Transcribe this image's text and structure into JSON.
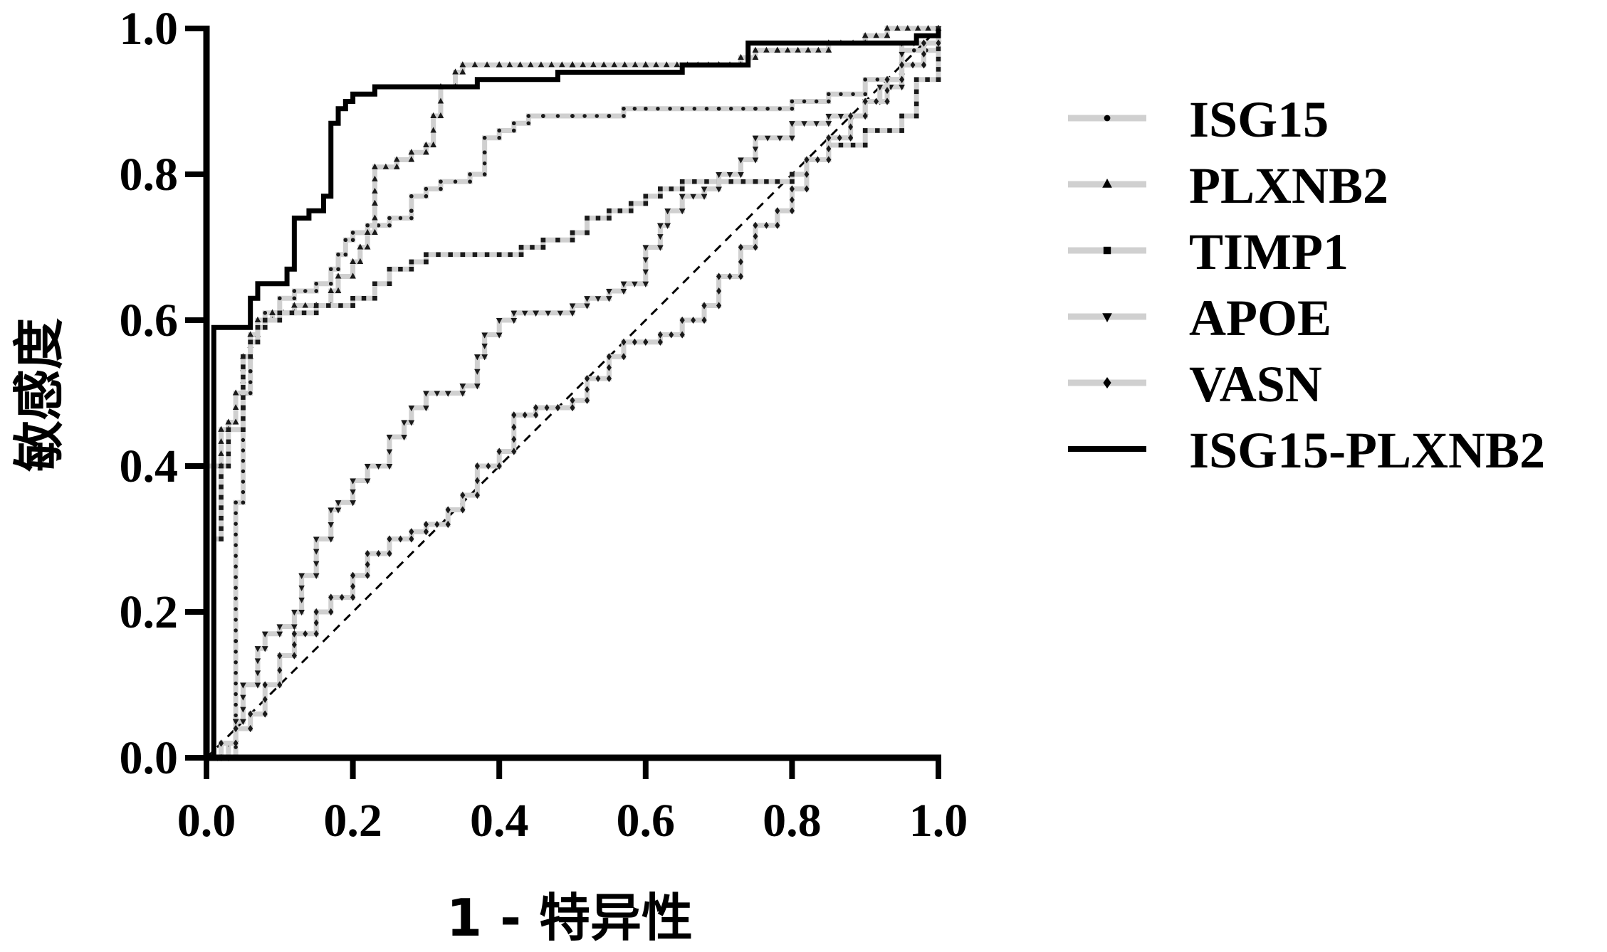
{
  "chart_data": {
    "type": "line",
    "title": "",
    "xlabel": "1 - 特异性",
    "ylabel": "敏感度",
    "xlim": [
      0,
      1
    ],
    "ylim": [
      0,
      1
    ],
    "x_ticks": [
      "0.0",
      "0.2",
      "0.4",
      "0.6",
      "0.8",
      "1.0"
    ],
    "y_ticks": [
      "0.0",
      "0.2",
      "0.4",
      "0.6",
      "0.8",
      "1.0"
    ],
    "grid": false,
    "legend_position": "right",
    "reference_line": {
      "x": [
        0,
        1
      ],
      "y": [
        0,
        1
      ],
      "style": "dashed"
    },
    "series": [
      {
        "name": "ISG15",
        "marker": "circle",
        "x": [
          0,
          0.04,
          0.04,
          0.05,
          0.05,
          0.06,
          0.06,
          0.07,
          0.08,
          0.1,
          0.12,
          0.15,
          0.17,
          0.18,
          0.19,
          0.2,
          0.22,
          0.25,
          0.28,
          0.28,
          0.3,
          0.32,
          0.36,
          0.38,
          0.38,
          0.4,
          0.42,
          0.44,
          0.46,
          0.5,
          0.55,
          0.57,
          0.6,
          0.65,
          0.7,
          0.75,
          0.8,
          0.85,
          0.9,
          0.95,
          1.0
        ],
        "y": [
          0,
          0.16,
          0.35,
          0.45,
          0.5,
          0.53,
          0.57,
          0.59,
          0.61,
          0.63,
          0.64,
          0.65,
          0.67,
          0.69,
          0.71,
          0.72,
          0.73,
          0.74,
          0.75,
          0.77,
          0.78,
          0.79,
          0.8,
          0.83,
          0.85,
          0.86,
          0.87,
          0.88,
          0.88,
          0.88,
          0.88,
          0.89,
          0.89,
          0.89,
          0.89,
          0.89,
          0.9,
          0.91,
          0.93,
          0.97,
          1.0
        ]
      },
      {
        "name": "PLXNB2",
        "marker": "triangle-up",
        "x": [
          0,
          0.0,
          0.0,
          0.02,
          0.02,
          0.03,
          0.04,
          0.05,
          0.06,
          0.07,
          0.09,
          0.12,
          0.15,
          0.17,
          0.18,
          0.2,
          0.21,
          0.22,
          0.23,
          0.23,
          0.26,
          0.28,
          0.3,
          0.31,
          0.32,
          0.34,
          0.35,
          0.4,
          0.5,
          0.6,
          0.7,
          0.73,
          0.75,
          0.78,
          0.85,
          0.9,
          0.93,
          1.0
        ],
        "y": [
          0,
          0.2,
          0.4,
          0.4,
          0.45,
          0.46,
          0.5,
          0.55,
          0.58,
          0.6,
          0.61,
          0.62,
          0.62,
          0.64,
          0.66,
          0.68,
          0.7,
          0.72,
          0.76,
          0.81,
          0.82,
          0.83,
          0.84,
          0.88,
          0.92,
          0.94,
          0.95,
          0.95,
          0.95,
          0.95,
          0.95,
          0.96,
          0.97,
          0.97,
          0.98,
          0.99,
          1.0,
          1.0
        ]
      },
      {
        "name": "TIMP1",
        "marker": "square",
        "x": [
          0,
          0.01,
          0.02,
          0.03,
          0.05,
          0.05,
          0.06,
          0.07,
          0.08,
          0.1,
          0.15,
          0.2,
          0.23,
          0.25,
          0.28,
          0.3,
          0.35,
          0.4,
          0.43,
          0.46,
          0.5,
          0.52,
          0.55,
          0.58,
          0.6,
          0.62,
          0.65,
          0.7,
          0.75,
          0.78,
          0.8,
          0.82,
          0.85,
          0.9,
          0.95,
          0.97,
          1.0
        ],
        "y": [
          0,
          0.3,
          0.4,
          0.45,
          0.48,
          0.55,
          0.57,
          0.59,
          0.6,
          0.61,
          0.62,
          0.63,
          0.65,
          0.67,
          0.68,
          0.69,
          0.69,
          0.69,
          0.7,
          0.71,
          0.72,
          0.74,
          0.75,
          0.76,
          0.77,
          0.78,
          0.79,
          0.79,
          0.79,
          0.79,
          0.8,
          0.82,
          0.84,
          0.86,
          0.88,
          0.93,
          1.0
        ]
      },
      {
        "name": "APOE",
        "marker": "triangle-down",
        "x": [
          0,
          0.03,
          0.04,
          0.05,
          0.07,
          0.08,
          0.1,
          0.12,
          0.13,
          0.15,
          0.17,
          0.18,
          0.2,
          0.22,
          0.25,
          0.27,
          0.28,
          0.3,
          0.33,
          0.35,
          0.37,
          0.38,
          0.4,
          0.42,
          0.45,
          0.5,
          0.52,
          0.55,
          0.57,
          0.6,
          0.62,
          0.63,
          0.65,
          0.68,
          0.7,
          0.73,
          0.75,
          0.8,
          0.85,
          0.9,
          0.92,
          0.95,
          1.0
        ],
        "y": [
          0,
          0.02,
          0.05,
          0.1,
          0.15,
          0.17,
          0.18,
          0.2,
          0.25,
          0.3,
          0.34,
          0.35,
          0.38,
          0.4,
          0.44,
          0.46,
          0.48,
          0.5,
          0.5,
          0.51,
          0.55,
          0.58,
          0.6,
          0.61,
          0.61,
          0.62,
          0.63,
          0.64,
          0.65,
          0.7,
          0.73,
          0.75,
          0.77,
          0.78,
          0.8,
          0.82,
          0.85,
          0.87,
          0.88,
          0.9,
          0.92,
          0.98,
          1.0
        ]
      },
      {
        "name": "VASN",
        "marker": "diamond",
        "x": [
          0,
          0.02,
          0.04,
          0.06,
          0.08,
          0.1,
          0.12,
          0.15,
          0.17,
          0.2,
          0.22,
          0.25,
          0.28,
          0.3,
          0.33,
          0.35,
          0.37,
          0.4,
          0.42,
          0.45,
          0.48,
          0.5,
          0.52,
          0.55,
          0.57,
          0.6,
          0.62,
          0.65,
          0.68,
          0.7,
          0.73,
          0.75,
          0.78,
          0.8,
          0.82,
          0.85,
          0.88,
          0.9,
          0.93,
          0.95,
          0.98,
          1.0
        ],
        "y": [
          0,
          0.02,
          0.04,
          0.06,
          0.1,
          0.14,
          0.17,
          0.2,
          0.22,
          0.25,
          0.28,
          0.3,
          0.31,
          0.32,
          0.34,
          0.36,
          0.4,
          0.42,
          0.47,
          0.48,
          0.48,
          0.49,
          0.52,
          0.55,
          0.57,
          0.57,
          0.58,
          0.6,
          0.62,
          0.66,
          0.7,
          0.73,
          0.75,
          0.78,
          0.82,
          0.85,
          0.88,
          0.9,
          0.93,
          0.95,
          0.98,
          1.0
        ]
      },
      {
        "name": "ISG15-PLXNB2",
        "marker": "none",
        "x": [
          0,
          0.01,
          0.01,
          0.06,
          0.06,
          0.07,
          0.07,
          0.11,
          0.11,
          0.12,
          0.12,
          0.14,
          0.14,
          0.16,
          0.16,
          0.17,
          0.17,
          0.18,
          0.18,
          0.19,
          0.19,
          0.2,
          0.2,
          0.23,
          0.23,
          0.26,
          0.26,
          0.37,
          0.37,
          0.48,
          0.48,
          0.65,
          0.65,
          0.74,
          0.74,
          0.97,
          0.97,
          1.0,
          1.0
        ],
        "y": [
          0,
          0,
          0.59,
          0.59,
          0.63,
          0.63,
          0.65,
          0.65,
          0.67,
          0.67,
          0.74,
          0.74,
          0.75,
          0.75,
          0.77,
          0.77,
          0.87,
          0.87,
          0.89,
          0.89,
          0.9,
          0.9,
          0.91,
          0.91,
          0.92,
          0.92,
          0.92,
          0.92,
          0.93,
          0.93,
          0.94,
          0.94,
          0.95,
          0.95,
          0.98,
          0.98,
          0.99,
          0.99,
          1.0
        ]
      }
    ]
  }
}
